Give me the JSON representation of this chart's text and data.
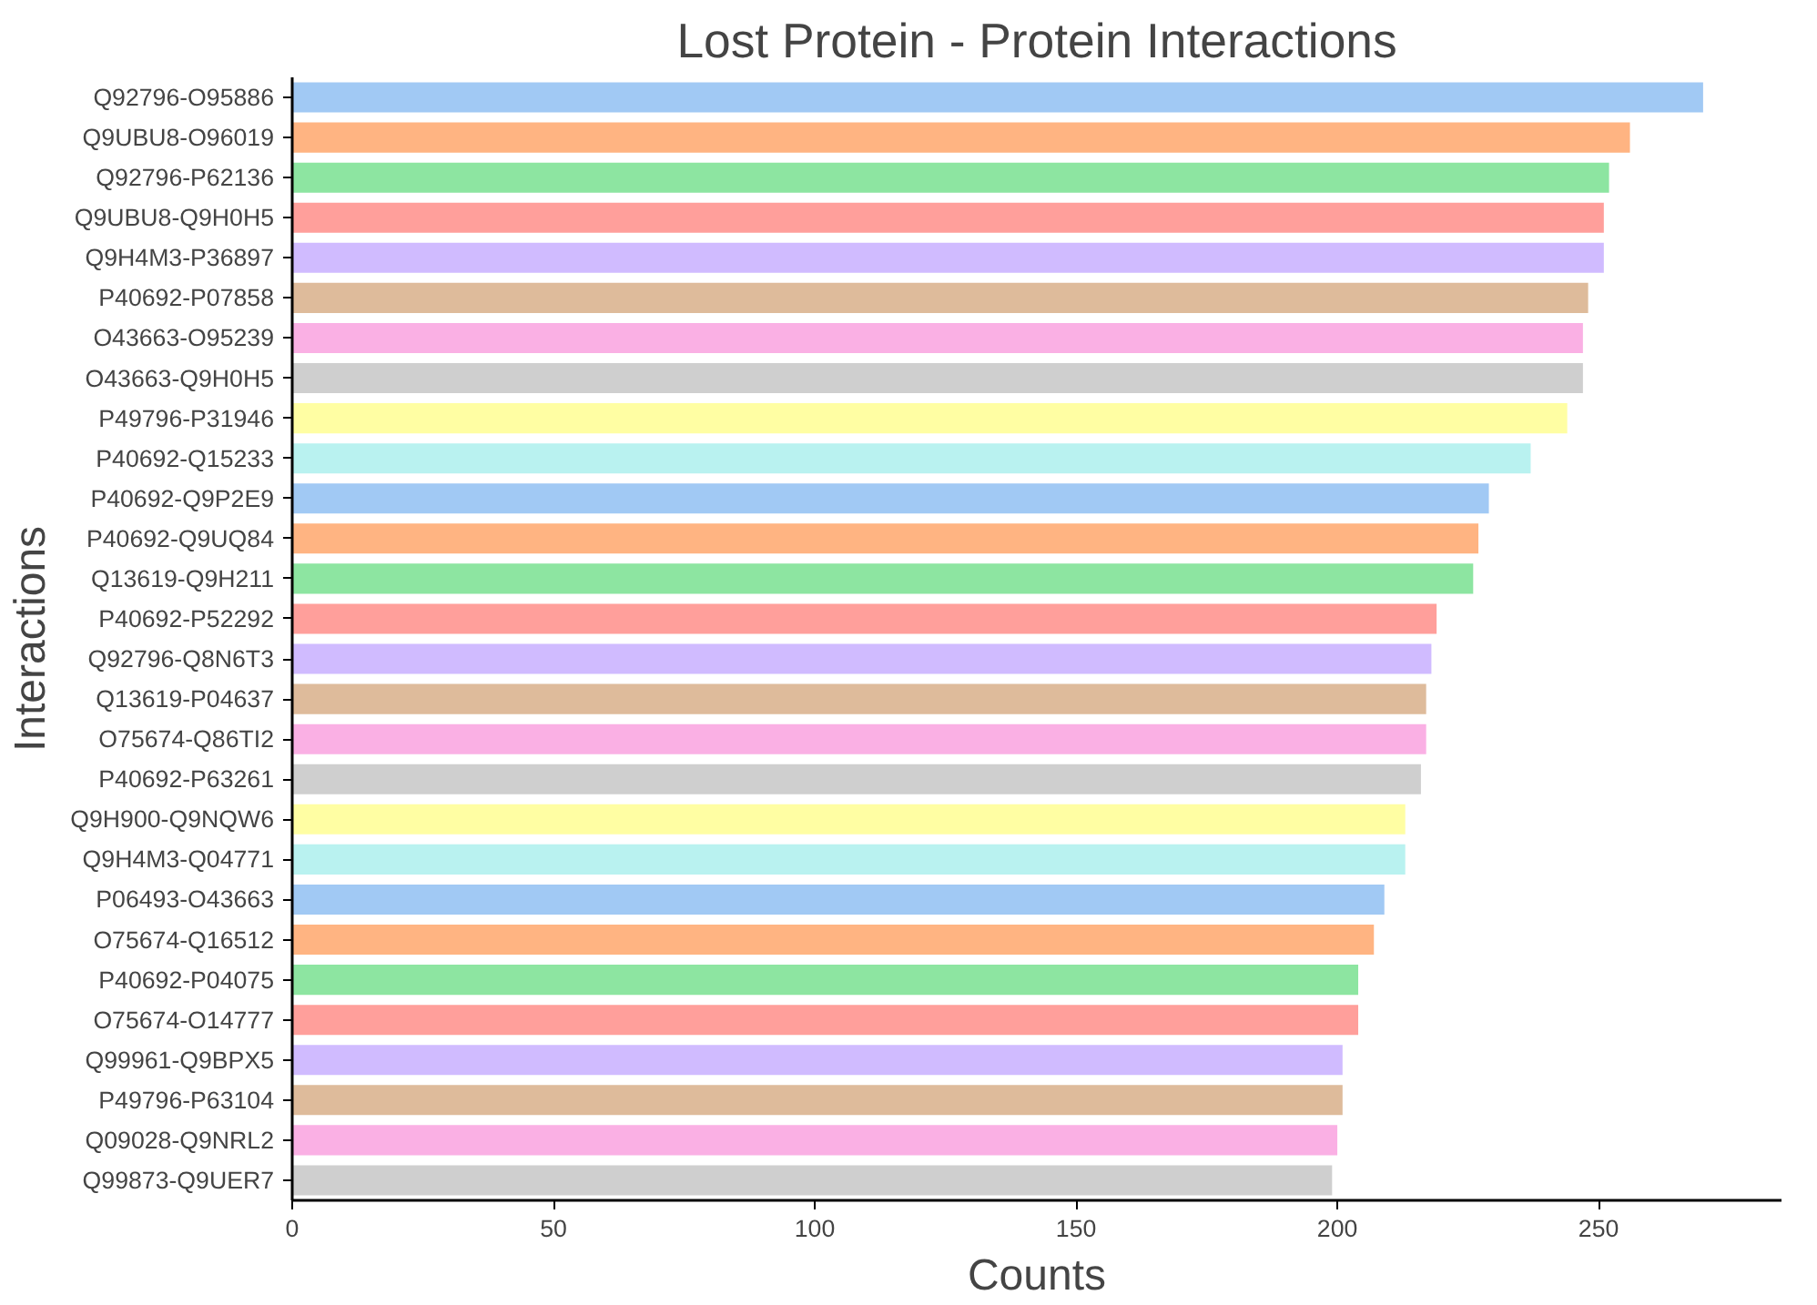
{
  "chart_data": {
    "type": "bar",
    "orientation": "horizontal",
    "title": "Lost Protein - Protein Interactions",
    "xlabel": "Counts",
    "ylabel": "Interactions",
    "categories": [
      "Q92796-O95886",
      "Q9UBU8-O96019",
      "Q92796-P62136",
      "Q9UBU8-Q9H0H5",
      "Q9H4M3-P36897",
      "P40692-P07858",
      "O43663-O95239",
      "O43663-Q9H0H5",
      "P49796-P31946",
      "P40692-Q15233",
      "P40692-Q9P2E9",
      "P40692-Q9UQ84",
      "Q13619-Q9H211",
      "P40692-P52292",
      "Q92796-Q8N6T3",
      "Q13619-P04637",
      "O75674-Q86TI2",
      "P40692-P63261",
      "Q9H900-Q9NQW6",
      "Q9H4M3-Q04771",
      "P06493-O43663",
      "O75674-Q16512",
      "P40692-P04075",
      "O75674-O14777",
      "Q99961-Q9BPX5",
      "P49796-P63104",
      "Q09028-Q9NRL2",
      "Q99873-Q9UER7"
    ],
    "values": [
      270,
      256,
      252,
      251,
      251,
      248,
      247,
      247,
      244,
      237,
      229,
      227,
      226,
      219,
      218,
      217,
      217,
      216,
      213,
      213,
      209,
      207,
      204,
      204,
      201,
      201,
      200,
      199
    ],
    "colors": [
      "#a1c9f4",
      "#ffb482",
      "#8de5a1",
      "#ff9f9b",
      "#d0bbff",
      "#debb9b",
      "#fab0e4",
      "#cfcfcf",
      "#fffea3",
      "#b9f2f0",
      "#a1c9f4",
      "#ffb482",
      "#8de5a1",
      "#ff9f9b",
      "#d0bbff",
      "#debb9b",
      "#fab0e4",
      "#cfcfcf",
      "#fffea3",
      "#b9f2f0",
      "#a1c9f4",
      "#ffb482",
      "#8de5a1",
      "#ff9f9b",
      "#d0bbff",
      "#debb9b",
      "#fab0e4",
      "#cfcfcf"
    ],
    "xlim": [
      0,
      285
    ],
    "xticks": [
      0,
      50,
      100,
      150,
      200,
      250
    ],
    "grid": false
  }
}
